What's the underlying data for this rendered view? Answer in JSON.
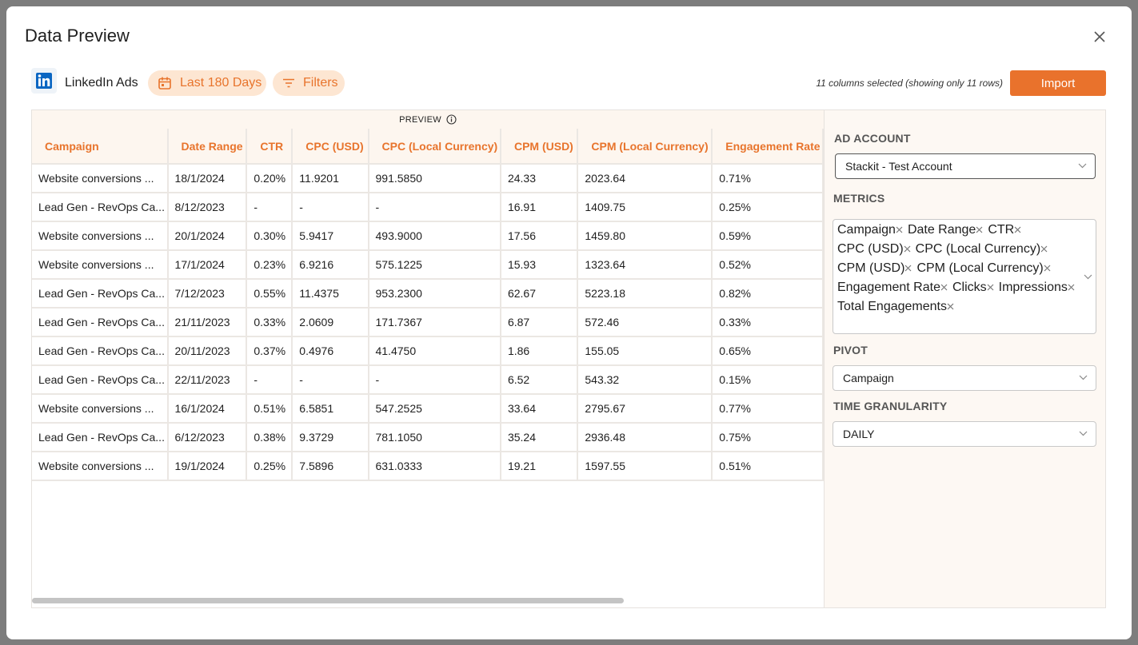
{
  "dialog": {
    "title": "Data Preview"
  },
  "toolbar": {
    "source": "LinkedIn Ads",
    "date_range": "Last 180 Days",
    "filters": "Filters",
    "status": "11 columns selected (showing only 11 rows)",
    "import": "Import"
  },
  "table": {
    "caption": "PREVIEW",
    "columns": [
      "Campaign",
      "Date Range",
      "CTR",
      "CPC (USD)",
      "CPC (Local Currency)",
      "CPM (USD)",
      "CPM (Local Currency)",
      "Engagement Rate"
    ],
    "rows": [
      [
        "Website conversions ...",
        "18/1/2024",
        "0.20%",
        "11.9201",
        "991.5850",
        "24.33",
        "2023.64",
        "0.71%"
      ],
      [
        "Lead Gen - RevOps Ca...",
        "8/12/2023",
        "-",
        "-",
        "-",
        "16.91",
        "1409.75",
        "0.25%"
      ],
      [
        "Website conversions ...",
        "20/1/2024",
        "0.30%",
        "5.9417",
        "493.9000",
        "17.56",
        "1459.80",
        "0.59%"
      ],
      [
        "Website conversions ...",
        "17/1/2024",
        "0.23%",
        "6.9216",
        "575.1225",
        "15.93",
        "1323.64",
        "0.52%"
      ],
      [
        "Lead Gen - RevOps Ca...",
        "7/12/2023",
        "0.55%",
        "11.4375",
        "953.2300",
        "62.67",
        "5223.18",
        "0.82%"
      ],
      [
        "Lead Gen - RevOps Ca...",
        "21/11/2023",
        "0.33%",
        "2.0609",
        "171.7367",
        "6.87",
        "572.46",
        "0.33%"
      ],
      [
        "Lead Gen - RevOps Ca...",
        "20/11/2023",
        "0.37%",
        "0.4976",
        "41.4750",
        "1.86",
        "155.05",
        "0.65%"
      ],
      [
        "Lead Gen - RevOps Ca...",
        "22/11/2023",
        "-",
        "-",
        "-",
        "6.52",
        "543.32",
        "0.15%"
      ],
      [
        "Website conversions ...",
        "16/1/2024",
        "0.51%",
        "6.5851",
        "547.2525",
        "33.64",
        "2795.67",
        "0.77%"
      ],
      [
        "Lead Gen - RevOps Ca...",
        "6/12/2023",
        "0.38%",
        "9.3729",
        "781.1050",
        "35.24",
        "2936.48",
        "0.75%"
      ],
      [
        "Website conversions ...",
        "19/1/2024",
        "0.25%",
        "7.5896",
        "631.0333",
        "19.21",
        "1597.55",
        "0.51%"
      ]
    ]
  },
  "sidebar": {
    "ad_account": {
      "label": "AD ACCOUNT",
      "value": "Stackit - Test Account"
    },
    "metrics": {
      "label": "METRICS",
      "selected": [
        "Campaign",
        "Date Range",
        "CTR",
        "CPC (USD)",
        "CPC (Local Currency)",
        "CPM (USD)",
        "CPM (Local Currency)",
        "Engagement Rate",
        "Clicks",
        "Impressions",
        "Total Engagements"
      ]
    },
    "pivot": {
      "label": "PIVOT",
      "value": "Campaign"
    },
    "time_granularity": {
      "label": "TIME GRANULARITY",
      "value": "DAILY"
    }
  }
}
